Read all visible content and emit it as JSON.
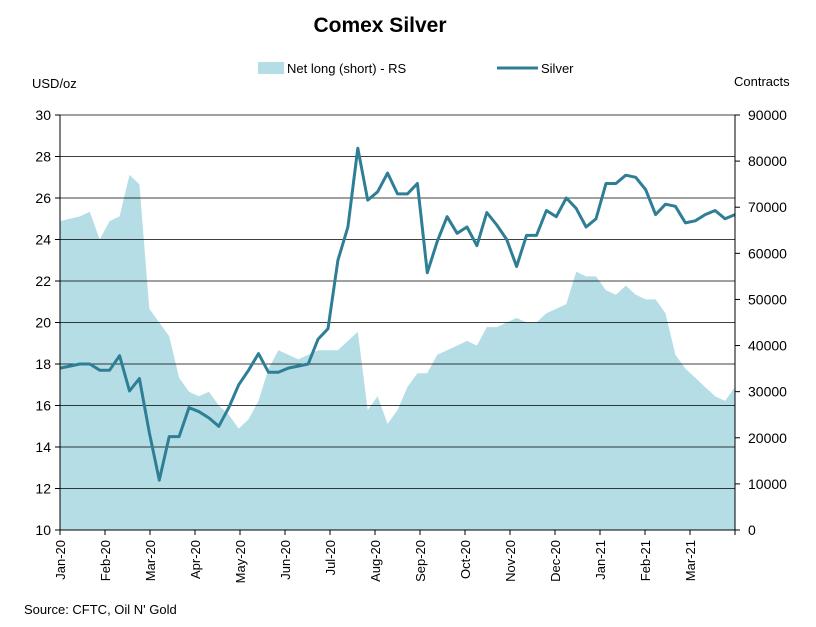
{
  "chart_data": {
    "type": "line",
    "title": "Comex Silver",
    "ylabel": "USD/oz",
    "y2label": "Contracts",
    "ylim": [
      10,
      30
    ],
    "y2lim": [
      0,
      90000
    ],
    "yticks": [
      10,
      12,
      14,
      16,
      18,
      20,
      22,
      24,
      26,
      28,
      30
    ],
    "y2ticks": [
      0,
      10000,
      20000,
      30000,
      40000,
      50000,
      60000,
      70000,
      80000,
      90000
    ],
    "x_tick_labels": [
      "Jan-20",
      "Feb-20",
      "Mar-20",
      "Apr-20",
      "May-20",
      "Jun-20",
      "Jul-20",
      "Aug-20",
      "Sep-20",
      "Oct-20",
      "Nov-20",
      "Dec-20",
      "Jan-21",
      "Feb-21",
      "Mar-21"
    ],
    "legend": {
      "position": "top",
      "entries": [
        "Net long (short) - RS",
        "Silver"
      ]
    },
    "source": "Source: CFTC, Oil N' Gold",
    "colors": {
      "area": "#b5dde6",
      "line": "#2e7f96",
      "grid": "#000000"
    },
    "series": [
      {
        "name": "Net long (short) - RS",
        "type": "area",
        "axis": "right",
        "values": [
          67000,
          67500,
          68000,
          69000,
          63000,
          67000,
          68000,
          77000,
          75000,
          48000,
          45000,
          42000,
          33000,
          30000,
          29000,
          30000,
          27000,
          25000,
          22000,
          24000,
          28000,
          35000,
          39000,
          38000,
          37000,
          38000,
          39000,
          39000,
          39000,
          41000,
          43000,
          26000,
          29000,
          23000,
          26000,
          31000,
          34000,
          34000,
          38000,
          39000,
          40000,
          41000,
          40000,
          44000,
          44000,
          45000,
          46000,
          45000,
          45000,
          47000,
          48000,
          49000,
          56000,
          55000,
          55000,
          52000,
          51000,
          53000,
          51000,
          50000,
          50000,
          47000,
          38000,
          35000,
          33000,
          31000,
          29000,
          28000,
          31000
        ]
      },
      {
        "name": "Silver",
        "type": "line",
        "axis": "left",
        "values": [
          17.8,
          17.9,
          18.0,
          18.0,
          17.7,
          17.7,
          18.4,
          16.7,
          17.3,
          14.7,
          12.4,
          14.5,
          14.5,
          15.9,
          15.7,
          15.4,
          15.0,
          15.9,
          17.0,
          17.7,
          18.5,
          17.6,
          17.6,
          17.8,
          17.9,
          18.0,
          19.2,
          19.7,
          23.0,
          24.6,
          28.4,
          25.9,
          26.3,
          27.2,
          26.2,
          26.2,
          26.7,
          22.4,
          23.9,
          25.1,
          24.3,
          24.6,
          23.7,
          25.3,
          24.7,
          24.0,
          22.7,
          24.2,
          24.2,
          25.4,
          25.1,
          26.0,
          25.5,
          24.6,
          25.0,
          26.7,
          26.7,
          27.1,
          27.0,
          26.4,
          25.2,
          25.7,
          25.6,
          24.8,
          24.9,
          25.2,
          25.4,
          25.0,
          25.2
        ]
      }
    ]
  }
}
